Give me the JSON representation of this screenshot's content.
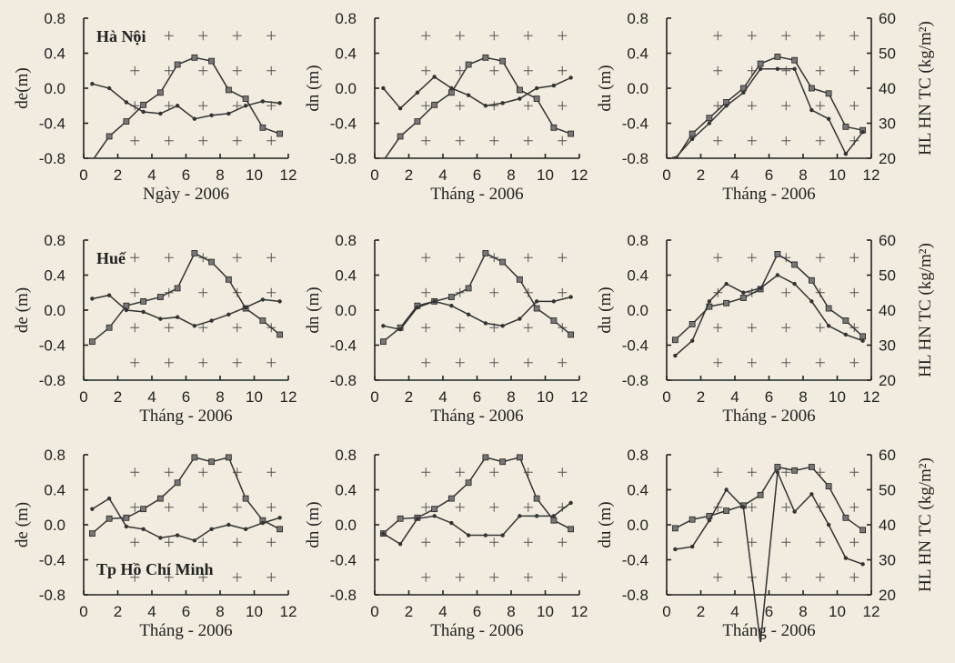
{
  "chart_data": [
    {
      "type": "line",
      "row": 0,
      "col": 0,
      "city": "Hà Nội",
      "xlabel": "Ngày - 2006",
      "ylabel": "de(m)",
      "xticks": [
        "0",
        "2",
        "4",
        "6",
        "8",
        "10",
        "12"
      ],
      "yticks": [
        "0.8",
        "0.4",
        "0.0",
        "-0.4",
        "-0.8"
      ],
      "xlim": [
        0,
        12
      ],
      "ylim": [
        -0.8,
        0.8
      ],
      "x": [
        0.5,
        1.5,
        2.5,
        3.5,
        4.5,
        5.5,
        6.5,
        7.5,
        8.5,
        9.5,
        10.5,
        11.5
      ],
      "series": [
        {
          "marker": "square",
          "values": [
            -0.83,
            -0.55,
            -0.38,
            -0.19,
            -0.05,
            0.27,
            0.35,
            0.31,
            -0.02,
            -0.12,
            -0.45,
            -0.52
          ]
        },
        {
          "marker": "dot",
          "values": [
            0.05,
            0.0,
            -0.16,
            -0.27,
            -0.29,
            -0.2,
            -0.35,
            -0.31,
            -0.29,
            -0.2,
            -0.15,
            -0.17
          ]
        }
      ]
    },
    {
      "type": "line",
      "row": 0,
      "col": 1,
      "xlabel": "Tháng - 2006",
      "ylabel": "dn (m)",
      "xticks": [
        "0",
        "2",
        "4",
        "6",
        "8",
        "10",
        "12"
      ],
      "yticks": [
        "0.8",
        "0.4",
        "0.0",
        "-0.4",
        "-0.8"
      ],
      "xlim": [
        0,
        12
      ],
      "ylim": [
        -0.8,
        0.8
      ],
      "x": [
        0.5,
        1.5,
        2.5,
        3.5,
        4.5,
        5.5,
        6.5,
        7.5,
        8.5,
        9.5,
        10.5,
        11.5
      ],
      "series": [
        {
          "marker": "square",
          "values": [
            -0.83,
            -0.55,
            -0.38,
            -0.19,
            -0.05,
            0.27,
            0.35,
            0.31,
            -0.02,
            -0.12,
            -0.45,
            -0.52
          ]
        },
        {
          "marker": "dot",
          "values": [
            0.0,
            -0.23,
            -0.05,
            0.13,
            0.0,
            -0.08,
            -0.2,
            -0.17,
            -0.12,
            0.0,
            0.03,
            0.12
          ]
        }
      ]
    },
    {
      "type": "line",
      "row": 0,
      "col": 2,
      "xlabel": "Tháng - 2006",
      "ylabel": "du (m)",
      "y2label": "HL HN TC (kg/m²)",
      "xticks": [
        "0",
        "2",
        "4",
        "6",
        "8",
        "10",
        "12"
      ],
      "yticks": [
        "0.8",
        "0.4",
        "0.0",
        "-0.4",
        "-0.8"
      ],
      "y2ticks": [
        "60",
        "50",
        "40",
        "30",
        "20"
      ],
      "xlim": [
        0,
        12
      ],
      "ylim": [
        -0.8,
        0.8
      ],
      "y2lim": [
        20,
        60
      ],
      "x": [
        0.5,
        1.5,
        2.5,
        3.5,
        4.5,
        5.5,
        6.5,
        7.5,
        8.5,
        9.5,
        10.5,
        11.5
      ],
      "series": [
        {
          "marker": "square",
          "axis": "right",
          "values": [
            19.5,
            27,
            31.5,
            36,
            40,
            47,
            49,
            48,
            40,
            38.5,
            29,
            28
          ]
        },
        {
          "marker": "dot",
          "axis": "left",
          "values": [
            -0.8,
            -0.58,
            -0.4,
            -0.2,
            -0.05,
            0.22,
            0.22,
            0.22,
            -0.25,
            -0.35,
            -0.75,
            -0.5
          ]
        }
      ]
    },
    {
      "type": "line",
      "row": 1,
      "col": 0,
      "city": "Huế",
      "xlabel": "Tháng - 2006",
      "ylabel": "de (m)",
      "xticks": [
        "0",
        "2",
        "4",
        "6",
        "8",
        "10",
        "12"
      ],
      "yticks": [
        "0.8",
        "0.4",
        "0.0",
        "-0.4",
        "-0.8"
      ],
      "xlim": [
        0,
        12
      ],
      "ylim": [
        -0.8,
        0.8
      ],
      "x": [
        0.5,
        1.5,
        2.5,
        3.5,
        4.5,
        5.5,
        6.5,
        7.5,
        8.5,
        9.5,
        10.5,
        11.5
      ],
      "series": [
        {
          "marker": "square",
          "values": [
            -0.36,
            -0.2,
            0.05,
            0.1,
            0.15,
            0.25,
            0.65,
            0.55,
            0.35,
            0.02,
            -0.12,
            -0.28
          ]
        },
        {
          "marker": "dot",
          "values": [
            0.13,
            0.17,
            0.0,
            -0.02,
            -0.1,
            -0.08,
            -0.18,
            -0.12,
            -0.05,
            0.03,
            0.12,
            0.1
          ]
        }
      ]
    },
    {
      "type": "line",
      "row": 1,
      "col": 1,
      "xlabel": "Tháng - 2006",
      "ylabel": "dn (m)",
      "xticks": [
        "0",
        "2",
        "4",
        "6",
        "8",
        "10",
        "12"
      ],
      "yticks": [
        "0.8",
        "0.4",
        "0.0",
        "-0.4",
        "-0.8"
      ],
      "xlim": [
        0,
        12
      ],
      "ylim": [
        -0.8,
        0.8
      ],
      "x": [
        0.5,
        1.5,
        2.5,
        3.5,
        4.5,
        5.5,
        6.5,
        7.5,
        8.5,
        9.5,
        10.5,
        11.5
      ],
      "series": [
        {
          "marker": "square",
          "values": [
            -0.36,
            -0.2,
            0.05,
            0.1,
            0.15,
            0.25,
            0.65,
            0.55,
            0.35,
            0.02,
            -0.12,
            -0.28
          ]
        },
        {
          "marker": "dot",
          "values": [
            -0.18,
            -0.22,
            0.03,
            0.1,
            0.05,
            -0.05,
            -0.15,
            -0.18,
            -0.1,
            0.1,
            0.1,
            0.15
          ]
        }
      ]
    },
    {
      "type": "line",
      "row": 1,
      "col": 2,
      "xlabel": "Tháng - 2006",
      "ylabel": "du (m)",
      "y2label": "HL HN TC (kg/m²)",
      "xticks": [
        "0",
        "2",
        "4",
        "6",
        "8",
        "10",
        "12"
      ],
      "yticks": [
        "0.8",
        "0.4",
        "0.0",
        "-0.4",
        "-0.8"
      ],
      "y2ticks": [
        "60",
        "50",
        "40",
        "30",
        "20"
      ],
      "xlim": [
        0,
        12
      ],
      "ylim": [
        -0.8,
        0.8
      ],
      "y2lim": [
        20,
        60
      ],
      "x": [
        0.5,
        1.5,
        2.5,
        3.5,
        4.5,
        5.5,
        6.5,
        7.5,
        8.5,
        9.5,
        10.5,
        11.5
      ],
      "series": [
        {
          "marker": "square",
          "axis": "right",
          "values": [
            31.5,
            36,
            41,
            42,
            43.5,
            46,
            56,
            53,
            48.5,
            40.5,
            37,
            32.5
          ]
        },
        {
          "marker": "dot",
          "axis": "left",
          "values": [
            -0.52,
            -0.35,
            0.1,
            0.3,
            0.2,
            0.25,
            0.4,
            0.3,
            0.1,
            -0.18,
            -0.28,
            -0.35
          ]
        }
      ]
    },
    {
      "type": "line",
      "row": 2,
      "col": 0,
      "city": "Tp Hồ Chí Minh",
      "xlabel": "Tháng - 2006",
      "ylabel": "de (m)",
      "xticks": [
        "0",
        "2",
        "4",
        "6",
        "8",
        "10",
        "12"
      ],
      "yticks": [
        "0.8",
        "0.4",
        "0.0",
        "-0.4",
        "-0.8"
      ],
      "xlim": [
        0,
        12
      ],
      "ylim": [
        -0.8,
        0.8
      ],
      "x": [
        0.5,
        1.5,
        2.5,
        3.5,
        4.5,
        5.5,
        6.5,
        7.5,
        8.5,
        9.5,
        10.5,
        11.5
      ],
      "series": [
        {
          "marker": "square",
          "values": [
            -0.1,
            0.07,
            0.08,
            0.18,
            0.3,
            0.48,
            0.77,
            0.72,
            0.77,
            0.3,
            0.05,
            -0.05
          ]
        },
        {
          "marker": "dot",
          "values": [
            0.18,
            0.3,
            -0.02,
            -0.05,
            -0.15,
            -0.12,
            -0.18,
            -0.05,
            0.0,
            -0.05,
            0.02,
            0.08
          ]
        }
      ]
    },
    {
      "type": "line",
      "row": 2,
      "col": 1,
      "xlabel": "Tháng - 2006",
      "ylabel": "dn (m)",
      "xticks": [
        "0",
        "2",
        "4",
        "6",
        "8",
        "10",
        "12"
      ],
      "yticks": [
        "0.8",
        "0.4",
        "0.0",
        "-0.4",
        "-0.8"
      ],
      "xlim": [
        0,
        12
      ],
      "ylim": [
        -0.8,
        0.8
      ],
      "x": [
        0.5,
        1.5,
        2.5,
        3.5,
        4.5,
        5.5,
        6.5,
        7.5,
        8.5,
        9.5,
        10.5,
        11.5
      ],
      "series": [
        {
          "marker": "square",
          "values": [
            -0.1,
            0.07,
            0.08,
            0.18,
            0.3,
            0.48,
            0.77,
            0.72,
            0.77,
            0.3,
            0.05,
            -0.05
          ]
        },
        {
          "marker": "dot",
          "values": [
            -0.1,
            -0.22,
            0.07,
            0.1,
            0.02,
            -0.12,
            -0.12,
            -0.12,
            0.1,
            0.1,
            0.1,
            0.25
          ]
        }
      ]
    },
    {
      "type": "line",
      "row": 2,
      "col": 2,
      "xlabel": "Tháng - 2006",
      "ylabel": "du (m)",
      "y2label": "HL HN TC (kg/m²)",
      "xticks": [
        "0",
        "2",
        "4",
        "6",
        "8",
        "10",
        "12"
      ],
      "yticks": [
        "0.8",
        "0.4",
        "0.0",
        "-0.4",
        "-0.8"
      ],
      "y2ticks": [
        "60",
        "50",
        "40",
        "30",
        "20"
      ],
      "xlim": [
        0,
        12
      ],
      "ylim": [
        -0.8,
        0.8
      ],
      "y2lim": [
        20,
        60
      ],
      "x": [
        0.5,
        1.5,
        2.5,
        3.5,
        4.5,
        5.5,
        6.5,
        7.5,
        8.5,
        9.5,
        10.5,
        11.5
      ],
      "series": [
        {
          "marker": "square",
          "axis": "right",
          "values": [
            39,
            41.5,
            42.5,
            44,
            45.5,
            48.5,
            56.5,
            55.5,
            56.5,
            51,
            42,
            38.5
          ]
        },
        {
          "marker": "dot",
          "axis": "left",
          "values": [
            -0.28,
            -0.25,
            0.05,
            0.4,
            0.2,
            -1.35,
            0.6,
            0.15,
            0.35,
            0.0,
            -0.38,
            -0.45
          ]
        }
      ]
    }
  ]
}
